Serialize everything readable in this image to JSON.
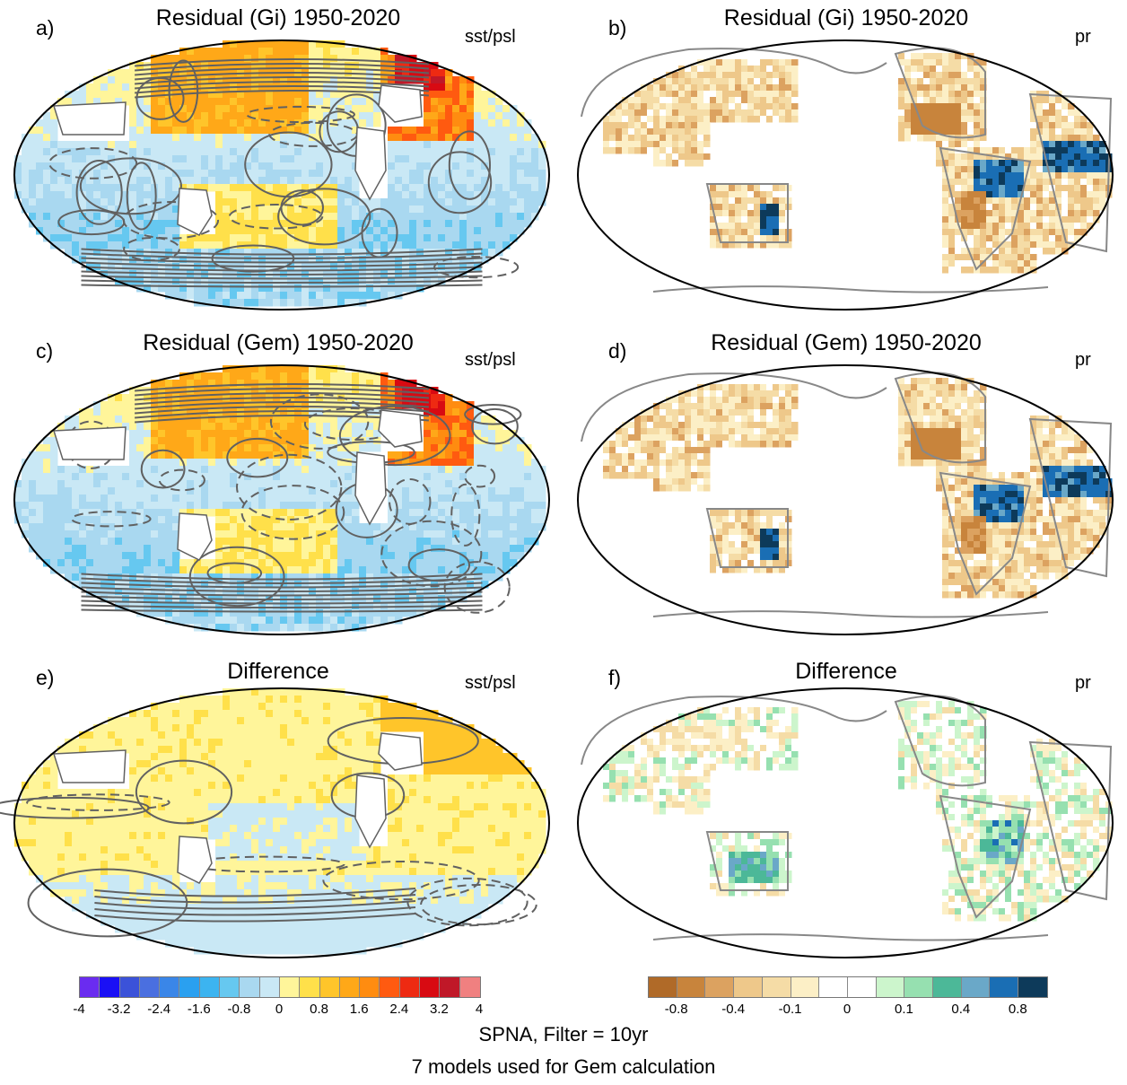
{
  "panels": [
    {
      "id": "a",
      "label": "a)",
      "title": "Residual (Gi) 1950-2020",
      "variable": "sst/psl",
      "kind": "sst"
    },
    {
      "id": "b",
      "label": "b)",
      "title": "Residual (Gi) 1950-2020",
      "variable": "pr",
      "kind": "pr"
    },
    {
      "id": "c",
      "label": "c)",
      "title": "Residual (Gem) 1950-2020",
      "variable": "sst/psl",
      "kind": "sst"
    },
    {
      "id": "d",
      "label": "d)",
      "title": "Residual (Gem) 1950-2020",
      "variable": "pr",
      "kind": "pr"
    },
    {
      "id": "e",
      "label": "e)",
      "title": "Difference",
      "variable": "sst/psl",
      "kind": "sst-diff"
    },
    {
      "id": "f",
      "label": "f)",
      "title": "Difference",
      "variable": "pr",
      "kind": "pr-diff"
    }
  ],
  "colorbars": {
    "sst": {
      "colors": [
        "#6a2cf0",
        "#1a10f5",
        "#3b52d9",
        "#4a6fe0",
        "#3a86e8",
        "#2aa0f0",
        "#3cb4f0",
        "#66c8f0",
        "#a9d8f0",
        "#c9e8f5",
        "#fff59a",
        "#ffe04a",
        "#ffc52a",
        "#ffa818",
        "#ff8c10",
        "#ff5a10",
        "#ee2a12",
        "#d80a12",
        "#c01828",
        "#f08080"
      ],
      "tick_labels": [
        "-4",
        "-3.2",
        "-2.4",
        "-1.6",
        "-0.8",
        "0",
        "0.8",
        "1.6",
        "2.4",
        "3.2",
        "4"
      ]
    },
    "pr": {
      "colors": [
        "#b06a28",
        "#c8843c",
        "#dca260",
        "#eec88a",
        "#f5dca6",
        "#fcefc6",
        "#ffffff",
        "#ffffff",
        "#ccf5cc",
        "#96e0b0",
        "#4cb898",
        "#6aa8c8",
        "#1a6eb4",
        "#0d3a5a"
      ],
      "tick_labels": [
        "-0.8",
        "-0.4",
        "-0.1",
        "0",
        "0.1",
        "0.4",
        "0.8"
      ]
    }
  },
  "caption": {
    "line1": "SPNA, Filter = 10yr",
    "line2": "7 models used for Gem calculation"
  }
}
